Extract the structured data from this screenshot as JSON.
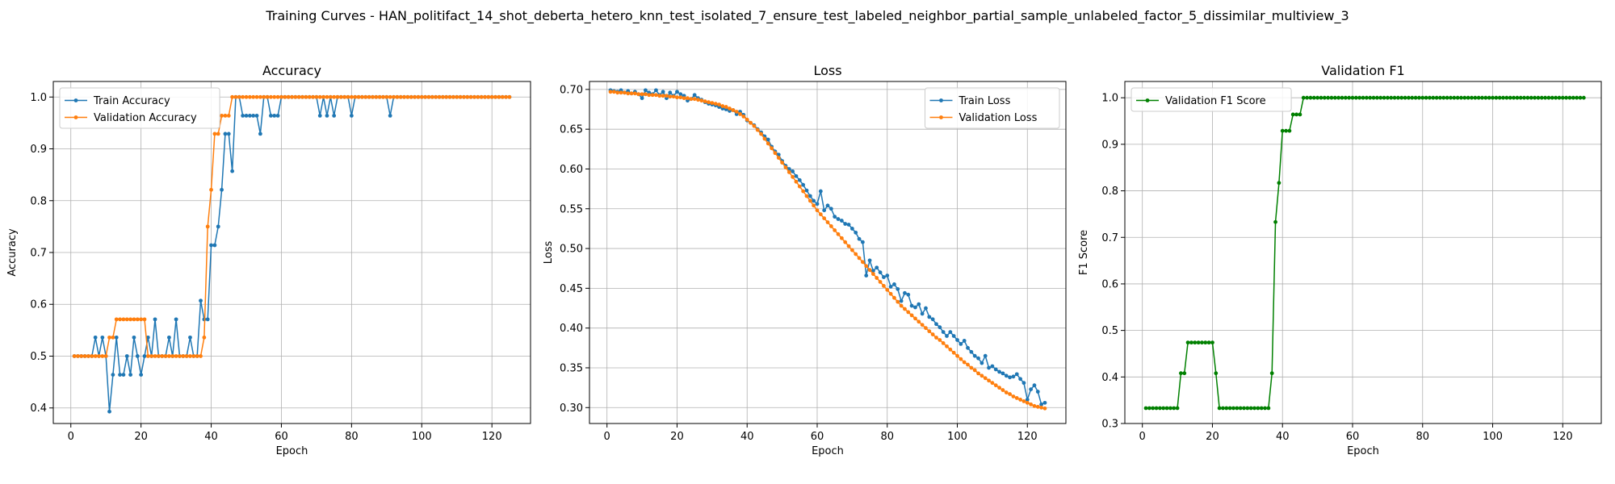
{
  "suptitle": "Training Curves - HAN_politifact_14_shot_deberta_hetero_knn_test_isolated_7_ensure_test_labeled_neighbor_partial_sample_unlabeled_factor_5_dissimilar_multiview_3",
  "colors": {
    "train": "#1f77b4",
    "validation": "#ff7f0e",
    "f1": "#008000",
    "grid": "#b0b0b0"
  },
  "chart_data": [
    {
      "type": "line",
      "title": "Accuracy",
      "xlabel": "Epoch",
      "ylabel": "Accuracy",
      "xlim": [
        -5,
        131
      ],
      "ylim": [
        0.37,
        1.03
      ],
      "xticks": [
        0,
        20,
        40,
        60,
        80,
        100,
        120
      ],
      "yticks": [
        0.4,
        0.5,
        0.6,
        0.7,
        0.8,
        0.9,
        1.0
      ],
      "ytick_labels": [
        "0.4",
        "0.5",
        "0.6",
        "0.7",
        "0.8",
        "0.9",
        "1.0"
      ],
      "grid": true,
      "legend_position": "upper-left",
      "series": [
        {
          "name": "Train Accuracy",
          "color_key": "train",
          "values": [
            0.5,
            0.5,
            0.5,
            0.5,
            0.5,
            0.5,
            0.536,
            0.5,
            0.536,
            0.5,
            0.393,
            0.464,
            0.536,
            0.464,
            0.464,
            0.5,
            0.464,
            0.536,
            0.5,
            0.464,
            0.5,
            0.536,
            0.5,
            0.571,
            0.5,
            0.5,
            0.5,
            0.536,
            0.5,
            0.571,
            0.5,
            0.5,
            0.5,
            0.536,
            0.5,
            0.5,
            0.607,
            0.571,
            0.571,
            0.714,
            0.714,
            0.75,
            0.821,
            0.929,
            0.929,
            0.857,
            1.0,
            1.0,
            0.964,
            0.964,
            0.964,
            0.964,
            0.964,
            0.929,
            1.0,
            1.0,
            0.964,
            0.964,
            0.964,
            1.0,
            1.0,
            1.0,
            1.0,
            1.0,
            1.0,
            1.0,
            1.0,
            1.0,
            1.0,
            1.0,
            0.964,
            1.0,
            0.964,
            1.0,
            0.964,
            1.0,
            1.0,
            1.0,
            1.0,
            0.964,
            1.0,
            1.0,
            1.0,
            1.0,
            1.0,
            1.0,
            1.0,
            1.0,
            1.0,
            1.0,
            0.964,
            1.0,
            1.0,
            1.0,
            1.0,
            1.0,
            1.0,
            1.0,
            1.0,
            1.0,
            1.0,
            1.0,
            1.0,
            1.0,
            1.0,
            1.0,
            1.0,
            1.0,
            1.0,
            1.0,
            1.0,
            1.0,
            1.0,
            1.0,
            1.0,
            1.0,
            1.0,
            1.0,
            1.0,
            1.0,
            1.0,
            1.0,
            1.0,
            1.0,
            1.0
          ]
        },
        {
          "name": "Validation Accuracy",
          "color_key": "validation",
          "values": [
            0.5,
            0.5,
            0.5,
            0.5,
            0.5,
            0.5,
            0.5,
            0.5,
            0.5,
            0.5,
            0.536,
            0.536,
            0.571,
            0.571,
            0.571,
            0.571,
            0.571,
            0.571,
            0.571,
            0.571,
            0.571,
            0.5,
            0.5,
            0.5,
            0.5,
            0.5,
            0.5,
            0.5,
            0.5,
            0.5,
            0.5,
            0.5,
            0.5,
            0.5,
            0.5,
            0.5,
            0.5,
            0.536,
            0.75,
            0.821,
            0.929,
            0.929,
            0.964,
            0.964,
            0.964,
            1.0,
            1.0,
            1.0,
            1.0,
            1.0,
            1.0,
            1.0,
            1.0,
            1.0,
            1.0,
            1.0,
            1.0,
            1.0,
            1.0,
            1.0,
            1.0,
            1.0,
            1.0,
            1.0,
            1.0,
            1.0,
            1.0,
            1.0,
            1.0,
            1.0,
            1.0,
            1.0,
            1.0,
            1.0,
            1.0,
            1.0,
            1.0,
            1.0,
            1.0,
            1.0,
            1.0,
            1.0,
            1.0,
            1.0,
            1.0,
            1.0,
            1.0,
            1.0,
            1.0,
            1.0,
            1.0,
            1.0,
            1.0,
            1.0,
            1.0,
            1.0,
            1.0,
            1.0,
            1.0,
            1.0,
            1.0,
            1.0,
            1.0,
            1.0,
            1.0,
            1.0,
            1.0,
            1.0,
            1.0,
            1.0,
            1.0,
            1.0,
            1.0,
            1.0,
            1.0,
            1.0,
            1.0,
            1.0,
            1.0,
            1.0,
            1.0,
            1.0,
            1.0,
            1.0,
            1.0
          ]
        }
      ]
    },
    {
      "type": "line",
      "title": "Loss",
      "xlabel": "Epoch",
      "ylabel": "Loss",
      "xlim": [
        -5,
        131
      ],
      "ylim": [
        0.28,
        0.71
      ],
      "xticks": [
        0,
        20,
        40,
        60,
        80,
        100,
        120
      ],
      "yticks": [
        0.3,
        0.35,
        0.4,
        0.45,
        0.5,
        0.55,
        0.6,
        0.65,
        0.7
      ],
      "ytick_labels": [
        "0.30",
        "0.35",
        "0.40",
        "0.45",
        "0.50",
        "0.55",
        "0.60",
        "0.65",
        "0.70"
      ],
      "grid": true,
      "legend_position": "upper-right",
      "series": [
        {
          "name": "Train Loss",
          "color_key": "train",
          "values": [
            0.699,
            0.698,
            0.697,
            0.699,
            0.696,
            0.698,
            0.695,
            0.697,
            0.694,
            0.689,
            0.699,
            0.696,
            0.694,
            0.699,
            0.693,
            0.697,
            0.689,
            0.696,
            0.692,
            0.697,
            0.694,
            0.692,
            0.686,
            0.688,
            0.693,
            0.689,
            0.687,
            0.684,
            0.682,
            0.681,
            0.68,
            0.678,
            0.676,
            0.675,
            0.673,
            0.674,
            0.669,
            0.672,
            0.668,
            0.661,
            0.658,
            0.655,
            0.65,
            0.646,
            0.641,
            0.637,
            0.628,
            0.622,
            0.618,
            0.61,
            0.604,
            0.6,
            0.597,
            0.591,
            0.586,
            0.58,
            0.573,
            0.566,
            0.56,
            0.556,
            0.572,
            0.548,
            0.554,
            0.55,
            0.54,
            0.537,
            0.535,
            0.531,
            0.53,
            0.525,
            0.52,
            0.512,
            0.508,
            0.466,
            0.485,
            0.472,
            0.476,
            0.47,
            0.464,
            0.466,
            0.452,
            0.455,
            0.449,
            0.434,
            0.444,
            0.442,
            0.428,
            0.426,
            0.43,
            0.418,
            0.425,
            0.414,
            0.411,
            0.405,
            0.401,
            0.395,
            0.39,
            0.395,
            0.39,
            0.385,
            0.38,
            0.384,
            0.375,
            0.37,
            0.365,
            0.362,
            0.356,
            0.365,
            0.35,
            0.352,
            0.348,
            0.345,
            0.343,
            0.34,
            0.338,
            0.339,
            0.342,
            0.336,
            0.331,
            0.31,
            0.323,
            0.328,
            0.32,
            0.304,
            0.306
          ]
        },
        {
          "name": "Validation Loss",
          "color_key": "validation",
          "values": [
            0.697,
            0.697,
            0.696,
            0.696,
            0.696,
            0.695,
            0.695,
            0.695,
            0.694,
            0.694,
            0.694,
            0.693,
            0.693,
            0.693,
            0.692,
            0.692,
            0.692,
            0.691,
            0.691,
            0.69,
            0.69,
            0.689,
            0.689,
            0.688,
            0.688,
            0.687,
            0.686,
            0.685,
            0.684,
            0.683,
            0.682,
            0.681,
            0.679,
            0.678,
            0.676,
            0.674,
            0.672,
            0.669,
            0.666,
            0.662,
            0.658,
            0.654,
            0.649,
            0.644,
            0.638,
            0.632,
            0.626,
            0.62,
            0.614,
            0.608,
            0.602,
            0.596,
            0.59,
            0.584,
            0.578,
            0.572,
            0.566,
            0.56,
            0.554,
            0.548,
            0.543,
            0.538,
            0.533,
            0.528,
            0.523,
            0.518,
            0.513,
            0.508,
            0.503,
            0.498,
            0.493,
            0.488,
            0.483,
            0.478,
            0.473,
            0.468,
            0.463,
            0.458,
            0.453,
            0.448,
            0.443,
            0.438,
            0.433,
            0.428,
            0.424,
            0.42,
            0.416,
            0.412,
            0.408,
            0.404,
            0.4,
            0.396,
            0.392,
            0.388,
            0.385,
            0.381,
            0.377,
            0.373,
            0.369,
            0.365,
            0.361,
            0.357,
            0.354,
            0.35,
            0.347,
            0.343,
            0.34,
            0.337,
            0.334,
            0.331,
            0.328,
            0.325,
            0.322,
            0.319,
            0.317,
            0.314,
            0.312,
            0.31,
            0.308,
            0.306,
            0.304,
            0.302,
            0.301,
            0.3,
            0.299
          ]
        }
      ]
    },
    {
      "type": "line",
      "title": "Validation F1",
      "xlabel": "Epoch",
      "ylabel": "F1 Score",
      "xlim": [
        -5,
        131
      ],
      "ylim": [
        0.3,
        1.035
      ],
      "xticks": [
        0,
        20,
        40,
        60,
        80,
        100,
        120
      ],
      "yticks": [
        0.3,
        0.4,
        0.5,
        0.6,
        0.7,
        0.8,
        0.9,
        1.0
      ],
      "ytick_labels": [
        "0.3",
        "0.4",
        "0.5",
        "0.6",
        "0.7",
        "0.8",
        "0.9",
        "1.0"
      ],
      "grid": true,
      "legend_position": "upper-left",
      "series": [
        {
          "name": "Validation F1 Score",
          "color_key": "f1",
          "values": [
            0.333,
            0.333,
            0.333,
            0.333,
            0.333,
            0.333,
            0.333,
            0.333,
            0.333,
            0.333,
            0.408,
            0.408,
            0.474,
            0.474,
            0.474,
            0.474,
            0.474,
            0.474,
            0.474,
            0.474,
            0.408,
            0.333,
            0.333,
            0.333,
            0.333,
            0.333,
            0.333,
            0.333,
            0.333,
            0.333,
            0.333,
            0.333,
            0.333,
            0.333,
            0.333,
            0.333,
            0.408,
            0.733,
            0.817,
            0.929,
            0.929,
            0.929,
            0.964,
            0.964,
            0.964,
            1.0,
            1.0,
            1.0,
            1.0,
            1.0,
            1.0,
            1.0,
            1.0,
            1.0,
            1.0,
            1.0,
            1.0,
            1.0,
            1.0,
            1.0,
            1.0,
            1.0,
            1.0,
            1.0,
            1.0,
            1.0,
            1.0,
            1.0,
            1.0,
            1.0,
            1.0,
            1.0,
            1.0,
            1.0,
            1.0,
            1.0,
            1.0,
            1.0,
            1.0,
            1.0,
            1.0,
            1.0,
            1.0,
            1.0,
            1.0,
            1.0,
            1.0,
            1.0,
            1.0,
            1.0,
            1.0,
            1.0,
            1.0,
            1.0,
            1.0,
            1.0,
            1.0,
            1.0,
            1.0,
            1.0,
            1.0,
            1.0,
            1.0,
            1.0,
            1.0,
            1.0,
            1.0,
            1.0,
            1.0,
            1.0,
            1.0,
            1.0,
            1.0,
            1.0,
            1.0,
            1.0,
            1.0,
            1.0,
            1.0,
            1.0,
            1.0,
            1.0,
            1.0,
            1.0,
            1.0,
            1.0
          ]
        }
      ]
    }
  ]
}
